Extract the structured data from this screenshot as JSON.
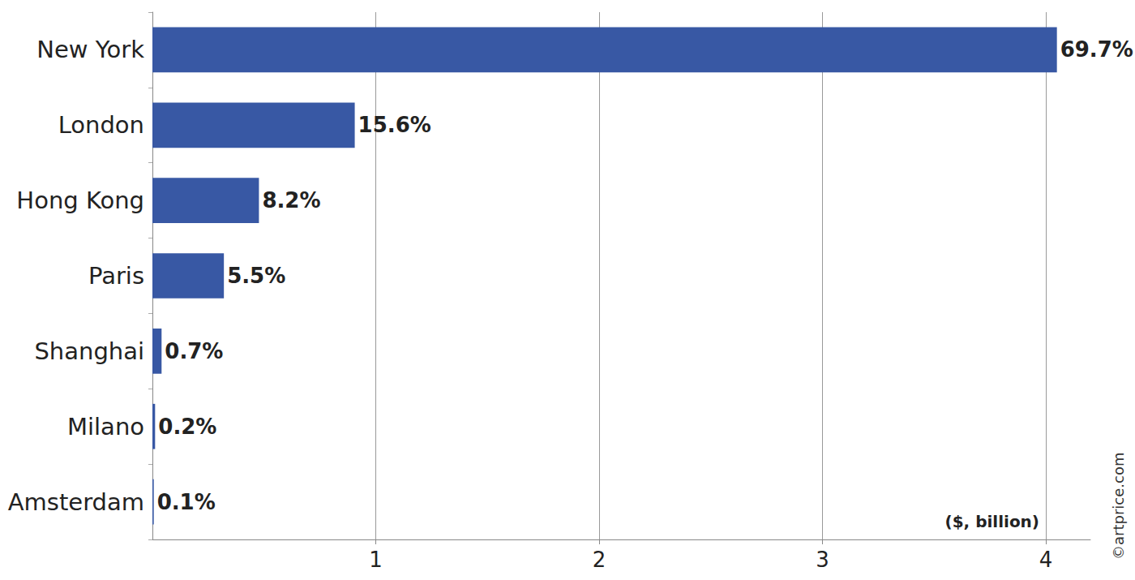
{
  "chart_data": {
    "type": "bar",
    "orientation": "horizontal",
    "categories": [
      "New York",
      "London",
      "Hong Kong",
      "Paris",
      "Shanghai",
      "Milano",
      "Amsterdam"
    ],
    "values": [
      4.05,
      0.906,
      0.477,
      0.32,
      0.041,
      0.012,
      0.006
    ],
    "share_labels": [
      "69.7%",
      "15.6%",
      "8.2%",
      "5.5%",
      "0.7%",
      "0.2%",
      "0.1%"
    ],
    "color": "#3858a4",
    "xlim": [
      0,
      4.2
    ],
    "xticks": [
      1,
      2,
      3,
      4
    ],
    "xlabel": "($, billion)",
    "annotations": [
      "©artprice.com"
    ],
    "grid": true,
    "data_labels": true
  }
}
